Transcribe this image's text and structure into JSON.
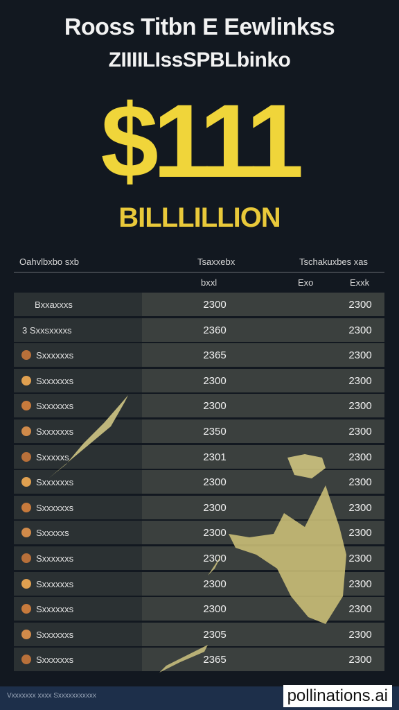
{
  "header": {
    "title_lines": [
      "Rooss Titbn E Eewlinkss",
      "ZIIIILIssSPBLbinko"
    ]
  },
  "headline": {
    "amount": "$111",
    "unit": "BILLLILLION"
  },
  "table": {
    "columns": [
      "Oahvlbxbo sxb",
      "Tsaxxebx",
      "Tschakuxbes xas"
    ],
    "subheaders": [
      "bxxl",
      "Exo",
      "Exxk"
    ],
    "rows": [
      [
        "Bxxaxxxs",
        "2300",
        "2300"
      ],
      [
        "3 Sxxsxxxxs",
        "2360",
        "2300"
      ],
      [
        "Sxxxxxxs",
        "2365",
        "2300"
      ],
      [
        "Sxxxxxxs",
        "2300",
        "2300"
      ],
      [
        "Sxxxxxxs",
        "2300",
        "2300"
      ],
      [
        "Sxxxxxxs",
        "2350",
        "2300"
      ],
      [
        "Sxxxxxs",
        "2301",
        "2300"
      ],
      [
        "Sxxxxxxs",
        "2300",
        "2300"
      ],
      [
        "Sxxxxxxs",
        "2300",
        "2300"
      ],
      [
        "Sxxxxxs",
        "2300",
        "2300"
      ],
      [
        "Sxxxxxxs",
        "2300",
        "2300"
      ],
      [
        "Sxxxxxxs",
        "2300",
        "2300"
      ],
      [
        "Sxxxxxxs",
        "2300",
        "2300"
      ],
      [
        "Sxxxxxxs",
        "2305",
        "2300"
      ],
      [
        "Sxxxxxxs",
        "2365",
        "2300"
      ]
    ]
  },
  "footer": {
    "caption": "Vxxxxxxx xxxx Sxxxxxxxxxxx",
    "watermark": "pollinations.ai"
  }
}
